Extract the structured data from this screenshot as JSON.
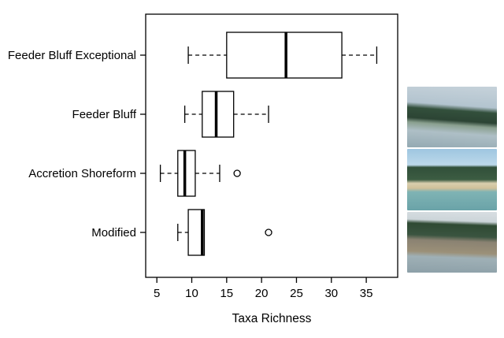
{
  "chart_data": {
    "type": "boxplot",
    "orientation": "horizontal",
    "title": "",
    "xlabel": "Taxa Richness",
    "ylabel": "",
    "xlim": [
      3.4,
      39.5
    ],
    "xticks": [
      5,
      10,
      15,
      20,
      25,
      30,
      35
    ],
    "grid": false,
    "categories": [
      "Feeder Bluff Exceptional",
      "Feeder Bluff",
      "Accretion Shoreform",
      "Modified"
    ],
    "boxes": [
      {
        "category": "Feeder Bluff Exceptional",
        "whisker_low": 9.5,
        "q1": 15,
        "median": 23.5,
        "q3": 31.5,
        "whisker_high": 36.5,
        "outliers": []
      },
      {
        "category": "Feeder Bluff",
        "whisker_low": 9,
        "q1": 11.5,
        "median": 13.5,
        "q3": 16,
        "whisker_high": 21,
        "outliers": []
      },
      {
        "category": "Accretion Shoreform",
        "whisker_low": 5.5,
        "q1": 8,
        "median": 9,
        "q3": 10.5,
        "whisker_high": 14,
        "outliers": [
          16.5
        ]
      },
      {
        "category": "Modified",
        "whisker_low": 8,
        "q1": 9.5,
        "median": 11.5,
        "q3": 11.8,
        "whisker_high": 11.8,
        "outliers": [
          21
        ]
      }
    ],
    "style": {
      "box_fill": "#ffffff",
      "line_color": "#000000",
      "whisker_dashed": true
    }
  },
  "photos": [
    {
      "name": "photo-feeder-bluff-exceptional",
      "label": "eroded coastal bluff"
    },
    {
      "name": "photo-feeder-bluff",
      "label": "treed feeder bluff shoreline"
    },
    {
      "name": "photo-accretion-shoreform",
      "label": "accretion beach with trees"
    },
    {
      "name": "photo-modified",
      "label": "modified rocky shoreline"
    }
  ]
}
